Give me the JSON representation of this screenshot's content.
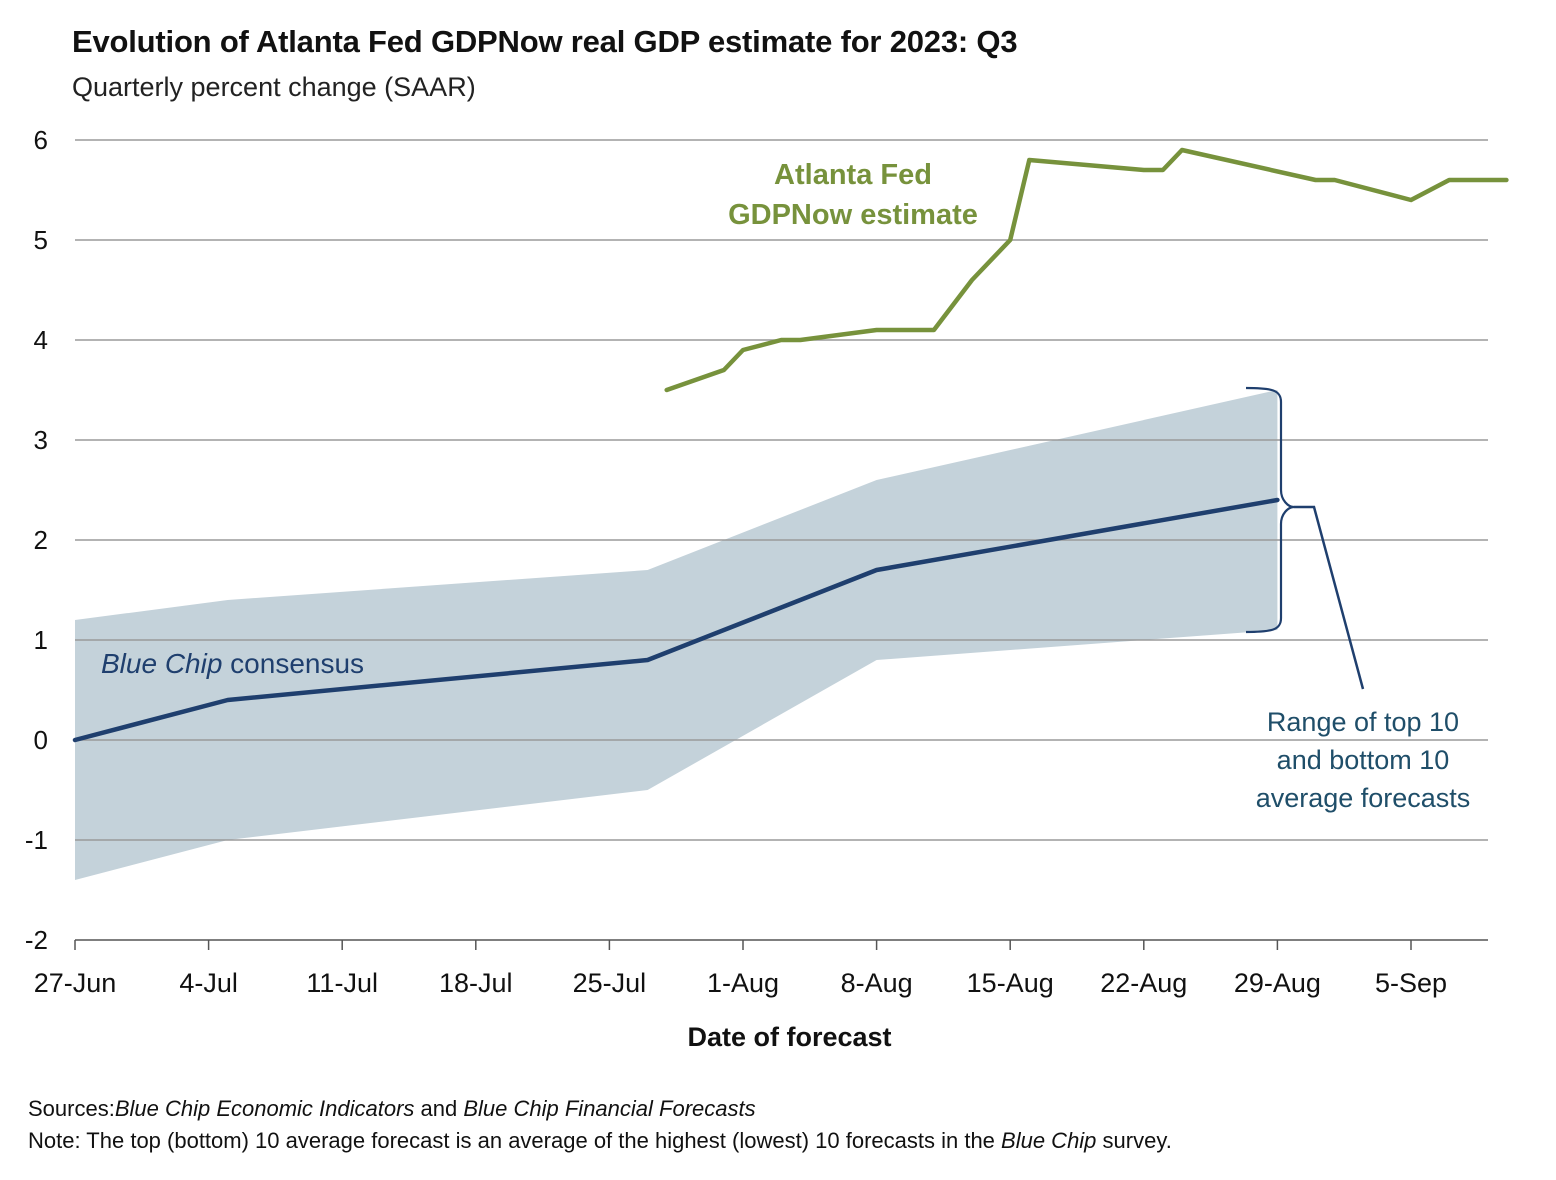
{
  "header": {
    "title": "Evolution of Atlanta Fed GDPNow real GDP estimate for 2023: Q3",
    "subtitle": "Quarterly percent change (SAAR)"
  },
  "footer": {
    "sources_label": "Sources:",
    "sources_text_1": "Blue Chip Economic Indicators",
    "sources_text_2": " and ",
    "sources_text_3": "Blue Chip Financial Forecasts",
    "note_label": "Note:",
    "note_text_1": " The top (bottom) 10 average forecast is an average of the highest (lowest) 10 forecasts in the ",
    "note_text_2": "Blue Chip",
    "note_text_3": " survey."
  },
  "colors": {
    "gdpnow": "#77923c",
    "consensus": "#1f3f6e",
    "band": "#c4d2da",
    "grid": "#9a9a9a",
    "range_label": "#1f4e69"
  },
  "chart_data": {
    "type": "line",
    "xlabel": "Date of forecast",
    "ylabel": "",
    "ylim": [
      -2,
      6
    ],
    "yticks": [
      -2,
      -1,
      0,
      1,
      2,
      3,
      4,
      5,
      6
    ],
    "xlim": [
      "2023-06-27",
      "2023-09-10"
    ],
    "xtick_dates": [
      "2023-06-27",
      "2023-07-04",
      "2023-07-11",
      "2023-07-18",
      "2023-07-25",
      "2023-08-01",
      "2023-08-08",
      "2023-08-15",
      "2023-08-22",
      "2023-08-29",
      "2023-09-05"
    ],
    "xtick_labels": [
      "27-Jun",
      "4-Jul",
      "11-Jul",
      "18-Jul",
      "25-Jul",
      "1-Aug",
      "8-Aug",
      "15-Aug",
      "22-Aug",
      "29-Aug",
      "5-Sep"
    ],
    "grid": true,
    "series": [
      {
        "name": "Atlanta Fed GDPNow estimate",
        "label_line1": "Atlanta Fed",
        "label_line2": "GDPNow estimate",
        "points": [
          [
            "2023-07-28",
            3.5
          ],
          [
            "2023-07-31",
            3.7
          ],
          [
            "2023-08-01",
            3.9
          ],
          [
            "2023-08-03",
            4.0
          ],
          [
            "2023-08-04",
            4.0
          ],
          [
            "2023-08-08",
            4.1
          ],
          [
            "2023-08-11",
            4.1
          ],
          [
            "2023-08-13",
            4.6
          ],
          [
            "2023-08-15",
            5.0
          ],
          [
            "2023-08-16",
            5.8
          ],
          [
            "2023-08-22",
            5.7
          ],
          [
            "2023-08-23",
            5.7
          ],
          [
            "2023-08-24",
            5.9
          ],
          [
            "2023-08-31",
            5.6
          ],
          [
            "2023-09-01",
            5.6
          ],
          [
            "2023-09-05",
            5.4
          ],
          [
            "2023-09-07",
            5.6
          ],
          [
            "2023-09-10",
            5.6
          ]
        ]
      },
      {
        "name": "Blue Chip consensus",
        "label_italic": "Blue Chip",
        "label_rest": " consensus",
        "points": [
          [
            "2023-06-27",
            0.0
          ],
          [
            "2023-07-05",
            0.4
          ],
          [
            "2023-07-27",
            0.8
          ],
          [
            "2023-08-08",
            1.7
          ],
          [
            "2023-08-29",
            2.4
          ]
        ]
      }
    ],
    "band": {
      "name": "Range of top 10 and bottom 10 average forecasts",
      "label_lines": [
        "Range of top 10",
        "and bottom 10",
        "average forecasts"
      ],
      "upper": [
        [
          "2023-06-27",
          1.2
        ],
        [
          "2023-07-05",
          1.4
        ],
        [
          "2023-07-27",
          1.7
        ],
        [
          "2023-08-08",
          2.6
        ],
        [
          "2023-08-29",
          3.5
        ]
      ],
      "lower": [
        [
          "2023-06-27",
          -1.4
        ],
        [
          "2023-07-05",
          -1.0
        ],
        [
          "2023-07-27",
          -0.5
        ],
        [
          "2023-08-08",
          0.8
        ],
        [
          "2023-08-29",
          1.1
        ]
      ]
    }
  }
}
